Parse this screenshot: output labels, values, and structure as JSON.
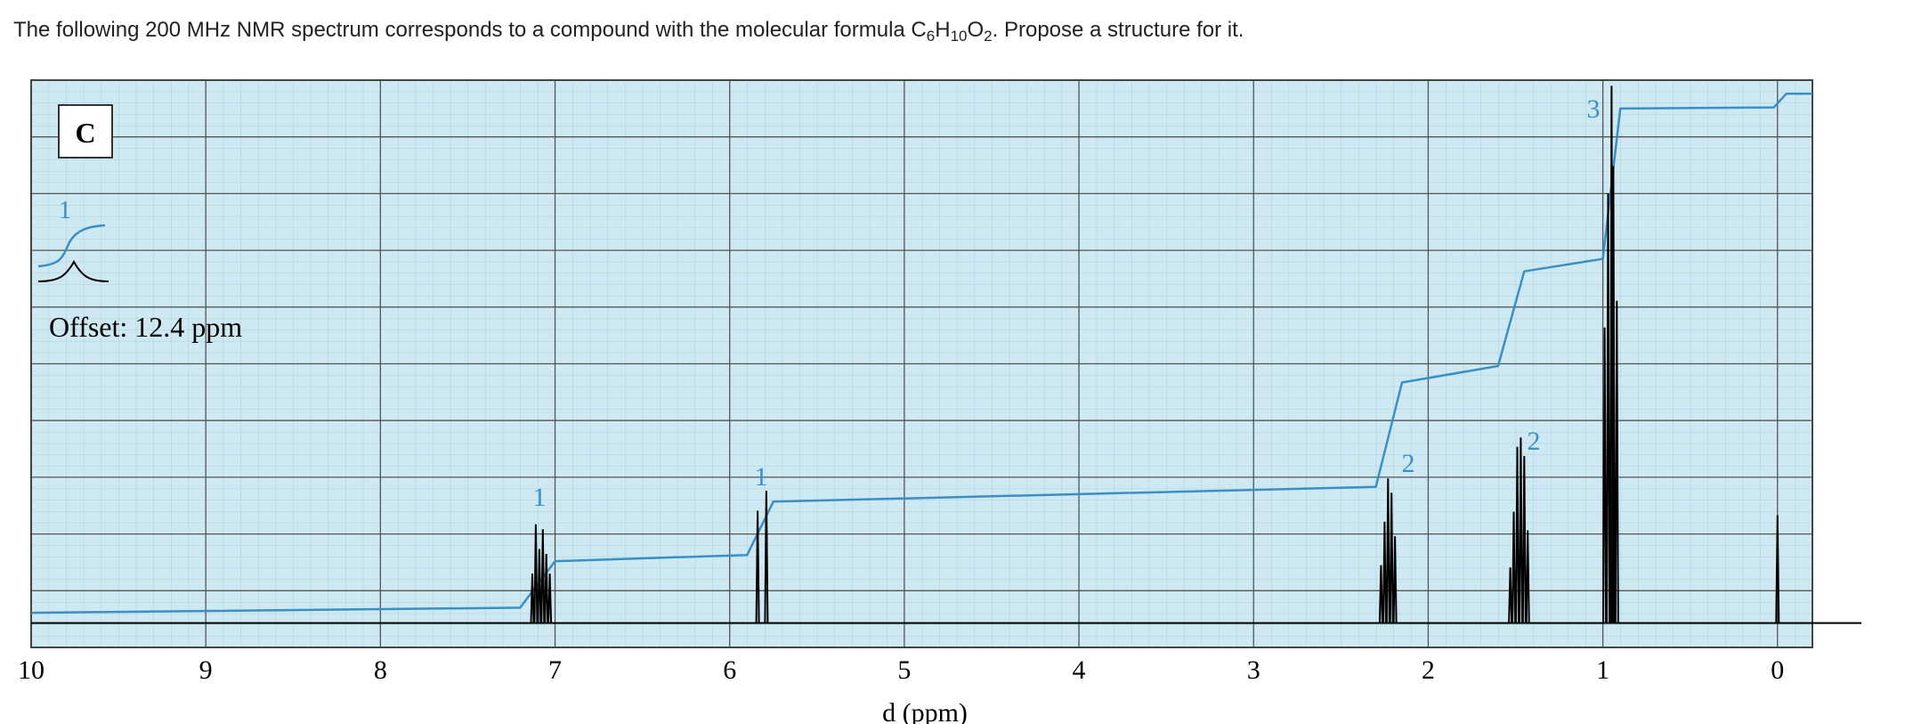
{
  "question": [
    "The following 200 MHz NMR spectrum corresponds to a compound with the molecular formula C",
    "6",
    "H",
    "10",
    "O",
    "2",
    ". Propose a structure for it."
  ],
  "chart_data": {
    "type": "nmr",
    "panel_label": "C",
    "inset_label": "1",
    "offset_label": "Offset: 12.4 ppm",
    "x_label": "d (ppm)",
    "xlim": [
      10,
      -0.2
    ],
    "xticks": [
      10,
      9,
      8,
      7,
      6,
      5,
      4,
      3,
      2,
      1,
      0
    ],
    "ylim": [
      -0.43,
      9.57
    ],
    "grid": true,
    "peaks": {
      "color": "#000000",
      "x": [
        7.07,
        5.82,
        2.22,
        1.48,
        0.95,
        0
      ],
      "values": [
        1.74,
        2.33,
        2.55,
        3.27,
        9.47,
        1.9
      ]
    },
    "integration": {
      "color": "#3a8fc4",
      "x": [
        10,
        7.2,
        7.0,
        5.9,
        5.75,
        2.3,
        2.15,
        1.6,
        1.45,
        1.0,
        0.9,
        0.02,
        -0.05,
        -0.2
      ],
      "values": [
        0.18,
        0.27,
        1.09,
        1.2,
        2.14,
        2.4,
        4.24,
        4.53,
        6.2,
        6.42,
        9.07,
        9.09,
        9.33,
        9.33
      ]
    },
    "integration_labels": [
      1,
      1,
      2,
      2,
      3
    ]
  }
}
